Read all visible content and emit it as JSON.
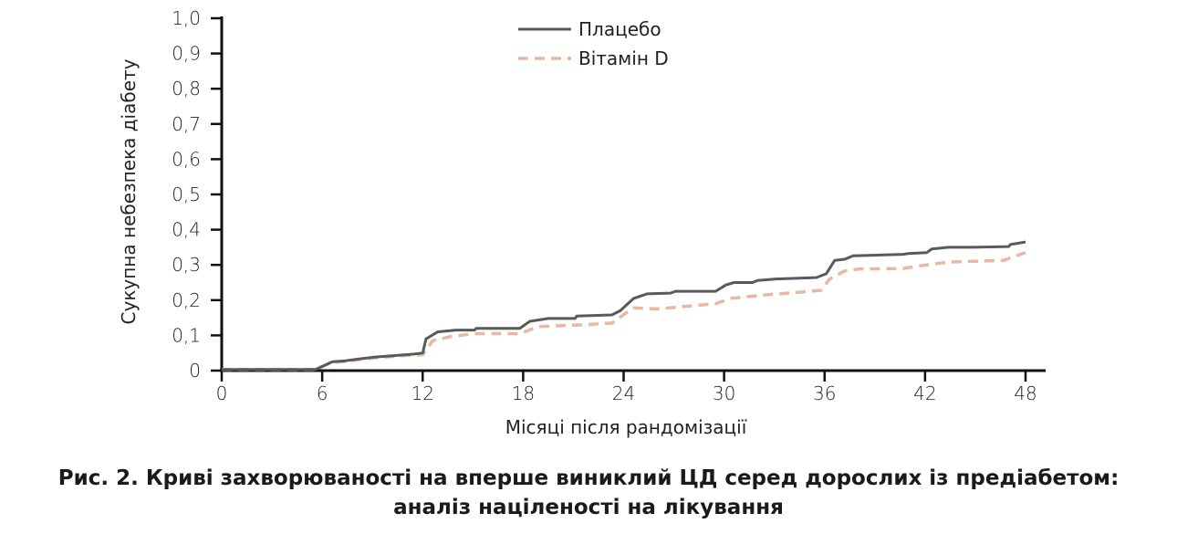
{
  "chart_data": {
    "type": "line",
    "title": "Рис. 2. Криві захворюваності на вперше виниклий ЦД серед дорослих із предіабетом: аналіз націленості на лікування",
    "title_lines": [
      "Рис. 2. Криві захворюваності на вперше виниклий ЦД серед дорослих із предіабетом:",
      "аналіз націленості на лікування"
    ],
    "xlabel": "Місяці після рандомізації",
    "ylabel": "Сукупна небезпека діабету",
    "xlim": [
      0,
      48
    ],
    "ylim": [
      0,
      1.0
    ],
    "xticks": [
      "0",
      "6",
      "12",
      "18",
      "24",
      "30",
      "36",
      "42",
      "48"
    ],
    "yticks": [
      "0",
      "0,1",
      "0,2",
      "0,3",
      "0,4",
      "0,5",
      "0,6",
      "0,7",
      "0,8",
      "0,9",
      "1,0"
    ],
    "legend_position": "top-center",
    "series": [
      {
        "name": "Плацебо",
        "color": "#5a5a5a",
        "style": "solid",
        "x": [
          0,
          5.6,
          6.6,
          7.4,
          8.2,
          9.1,
          10.7,
          11.5,
          12,
          12.2,
          12.9,
          14,
          15.1,
          15.2,
          17.8,
          18.4,
          19.5,
          21.1,
          21.2,
          23.3,
          23.8,
          24.6,
          25.4,
          26.8,
          27.1,
          29.5,
          30.1,
          30.6,
          31.7,
          32,
          33.1,
          35.5,
          36.1,
          36.6,
          37.2,
          37.7,
          40.7,
          41,
          42.1,
          42.4,
          43.4,
          44.8,
          47,
          47.1,
          48
        ],
        "y": [
          0.003,
          0.003,
          0.025,
          0.028,
          0.033,
          0.038,
          0.044,
          0.047,
          0.05,
          0.09,
          0.11,
          0.115,
          0.115,
          0.12,
          0.12,
          0.14,
          0.148,
          0.148,
          0.155,
          0.158,
          0.17,
          0.205,
          0.218,
          0.22,
          0.225,
          0.225,
          0.243,
          0.25,
          0.25,
          0.256,
          0.26,
          0.264,
          0.275,
          0.313,
          0.316,
          0.326,
          0.33,
          0.332,
          0.335,
          0.345,
          0.35,
          0.35,
          0.352,
          0.358,
          0.365
        ]
      },
      {
        "name": "Вітамін D",
        "color": "#e8b8a4",
        "style": "dashed",
        "x": [
          0,
          5.6,
          6.6,
          7.4,
          8.2,
          9.1,
          10.7,
          12,
          12.6,
          13.7,
          15.1,
          17.8,
          18.9,
          21.6,
          23.3,
          23.8,
          24.6,
          26,
          29.5,
          30.4,
          32.5,
          34.4,
          35.8,
          36.3,
          37.2,
          38,
          40.7,
          41.8,
          43.4,
          46.7,
          48
        ],
        "y": [
          0.003,
          0.003,
          0.023,
          0.026,
          0.031,
          0.036,
          0.042,
          0.045,
          0.085,
          0.097,
          0.105,
          0.105,
          0.125,
          0.13,
          0.135,
          0.152,
          0.178,
          0.175,
          0.19,
          0.205,
          0.215,
          0.222,
          0.228,
          0.26,
          0.283,
          0.288,
          0.29,
          0.298,
          0.308,
          0.313,
          0.335
        ]
      }
    ]
  }
}
